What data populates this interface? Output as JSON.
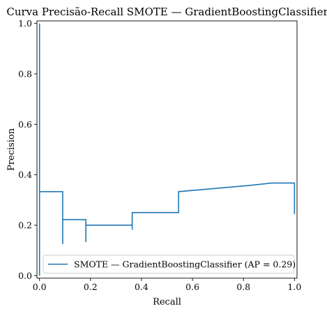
{
  "chart_data": {
    "type": "line",
    "title": "Curva Precisão-Recall SMOTE — GradientBoostingClassifier",
    "xlabel": "Recall",
    "ylabel": "Precision",
    "xlim": [
      0.0,
      1.0
    ],
    "ylim": [
      0.0,
      1.0
    ],
    "xticks": [
      "0.0",
      "0.2",
      "0.4",
      "0.6",
      "0.8",
      "1.0"
    ],
    "yticks": [
      "0.0",
      "0.2",
      "0.4",
      "0.6",
      "0.8",
      "1.0"
    ],
    "grid": false,
    "legend_position": "lower-right",
    "color": "#1f77b4",
    "series": [
      {
        "name": "SMOTE — GradientBoostingClassifier (AP = 0.29)",
        "drawstyle": "steps-post",
        "recall": [
          0.0,
          0.0,
          0.0,
          0.0909,
          0.0909,
          0.0909,
          0.1818,
          0.1818,
          0.1818,
          0.3636,
          0.3636,
          0.3636,
          0.5455,
          0.5455,
          0.8182,
          0.9091,
          1.0,
          1.0
        ],
        "precision": [
          0.0,
          1.0,
          0.333,
          0.333,
          0.125,
          0.222,
          0.222,
          0.133,
          0.2,
          0.2,
          0.182,
          0.25,
          0.25,
          0.333,
          0.357,
          0.367,
          0.367,
          0.244
        ]
      }
    ]
  }
}
